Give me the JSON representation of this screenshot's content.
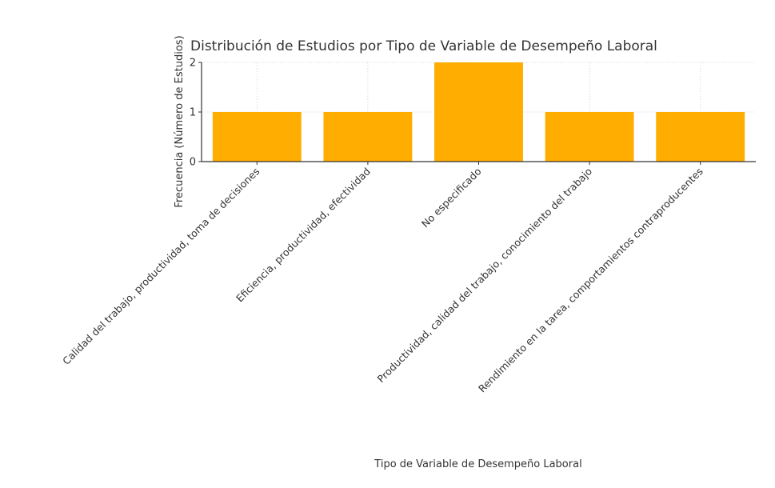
{
  "chart_data": {
    "type": "bar",
    "title": "Distribución de Estudios por Tipo de Variable de Desempeño Laboral",
    "xlabel": "Tipo de Variable de Desempeño Laboral",
    "ylabel": "Frecuencia (Número de Estudios)",
    "categories": [
      "Calidad del trabajo, productividad, toma de decisiones",
      "Eficiencia, productividad, efectividad",
      "No especificado",
      "Productividad, calidad del trabajo, conocimiento del trabajo",
      "Rendimiento en la tarea, comportamientos contraproducentes"
    ],
    "values": [
      1,
      1,
      2,
      1,
      1
    ],
    "ylim": [
      0,
      2
    ],
    "yticks": [
      0,
      1,
      2
    ],
    "grid": true,
    "bar_color": "#FFAD00",
    "grid_color": "#d6d6d6",
    "axis_color": "#333333"
  }
}
